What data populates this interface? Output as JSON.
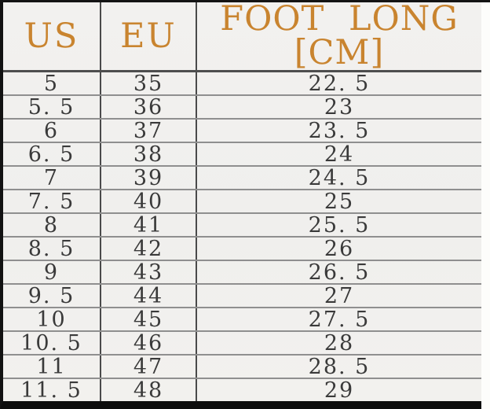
{
  "colors": {
    "header_text": "#c9842f",
    "cell_text": "#3a3a3a",
    "table_background": "#f1f0ee",
    "row_line": "#8f8f8f",
    "column_line": "#4a4a4a",
    "frame": "#121212"
  },
  "table": {
    "columns": [
      {
        "key": "us",
        "label": "US"
      },
      {
        "key": "eu",
        "label": "EU"
      },
      {
        "key": "cm",
        "label": "FOOT LONG [CM]"
      }
    ],
    "rows": [
      {
        "us": "5",
        "eu": "35",
        "cm": "22. 5"
      },
      {
        "us": "5. 5",
        "eu": "36",
        "cm": "23"
      },
      {
        "us": "6",
        "eu": "37",
        "cm": "23. 5"
      },
      {
        "us": "6. 5",
        "eu": "38",
        "cm": "24"
      },
      {
        "us": "7",
        "eu": "39",
        "cm": "24. 5"
      },
      {
        "us": "7. 5",
        "eu": "40",
        "cm": "25"
      },
      {
        "us": "8",
        "eu": "41",
        "cm": "25. 5"
      },
      {
        "us": "8. 5",
        "eu": "42",
        "cm": "26"
      },
      {
        "us": "9",
        "eu": "43",
        "cm": "26. 5"
      },
      {
        "us": "9. 5",
        "eu": "44",
        "cm": "27"
      },
      {
        "us": "10",
        "eu": "45",
        "cm": "27. 5"
      },
      {
        "us": "10. 5",
        "eu": "46",
        "cm": "28"
      },
      {
        "us": "11",
        "eu": "47",
        "cm": "28. 5"
      },
      {
        "us": "11. 5",
        "eu": "48",
        "cm": "29"
      }
    ]
  },
  "chart_data": {
    "type": "table",
    "title": "",
    "columns": [
      "US",
      "EU",
      "FOOT LONG [CM]"
    ],
    "rows": [
      [
        "5",
        "35",
        "22.5"
      ],
      [
        "5.5",
        "36",
        "23"
      ],
      [
        "6",
        "37",
        "23.5"
      ],
      [
        "6.5",
        "38",
        "24"
      ],
      [
        "7",
        "39",
        "24.5"
      ],
      [
        "7.5",
        "40",
        "25"
      ],
      [
        "8",
        "41",
        "25.5"
      ],
      [
        "8.5",
        "42",
        "26"
      ],
      [
        "9",
        "43",
        "26.5"
      ],
      [
        "9.5",
        "44",
        "27"
      ],
      [
        "10",
        "45",
        "27.5"
      ],
      [
        "10.5",
        "46",
        "28"
      ],
      [
        "11",
        "47",
        "28.5"
      ],
      [
        "11.5",
        "48",
        "29"
      ]
    ]
  }
}
